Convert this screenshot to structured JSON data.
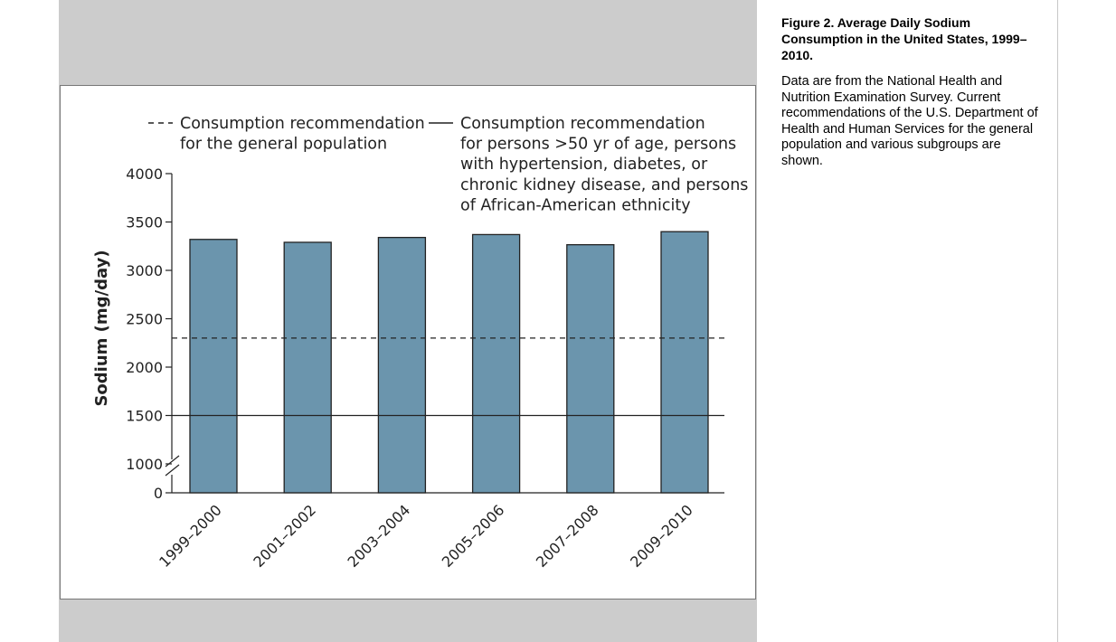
{
  "caption": {
    "title": "Figure 2. Average Daily Sodium Consumption in the United States, 1999–2010.",
    "body": "Data are from the National Health and Nutrition Examination Survey. Current recommendations of the U.S. Department of Health and Human Services for the general population and various subgroups are shown."
  },
  "chart_data": {
    "type": "bar",
    "categories": [
      "1999–2000",
      "2001–2002",
      "2003–2004",
      "2005–2006",
      "2007–2008",
      "2009–2010"
    ],
    "values": [
      3320,
      3290,
      3340,
      3370,
      3265,
      3400
    ],
    "ylabel": "Sodium (mg/day)",
    "xlabel": "",
    "ylim": [
      1000,
      4000
    ],
    "yticks": [
      1000,
      1500,
      2000,
      2500,
      3000,
      3500,
      4000
    ],
    "y_zero_label": "0",
    "axis_break": true,
    "grid": false,
    "bar_color": "#6b95ad",
    "reference_lines": [
      {
        "value": 2300,
        "style": "dashed",
        "legend_lines": [
          "Consumption recommendation",
          "for the general population"
        ]
      },
      {
        "value": 1500,
        "style": "solid",
        "legend_lines": [
          "Consumption recommendation",
          "for persons >50 yr of age, persons",
          "with hypertension, diabetes, or",
          "chronic kidney disease, and persons",
          "of African-American ethnicity"
        ]
      }
    ],
    "legend_position": "top"
  }
}
